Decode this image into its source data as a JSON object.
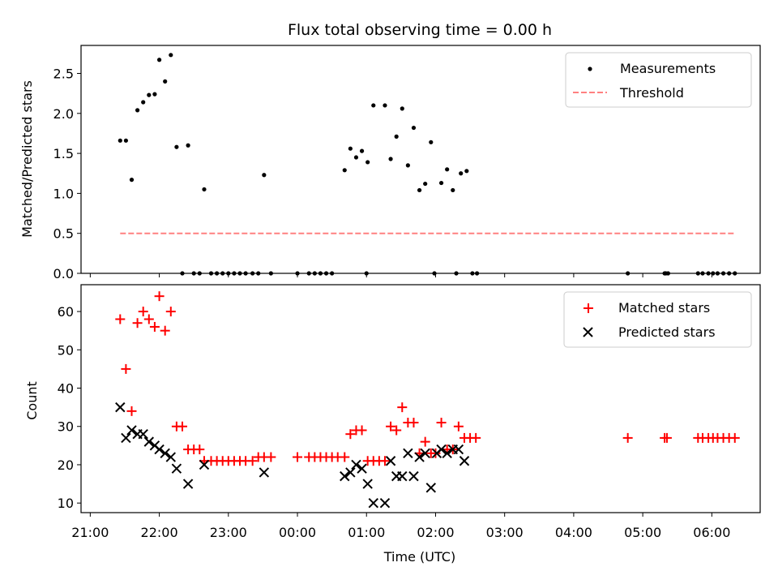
{
  "title": "Flux total observing time = 0.00 h",
  "xlabel": "Time (UTC)",
  "x_ticks": [
    "21:00",
    "22:00",
    "23:00",
    "00:00",
    "01:00",
    "02:00",
    "03:00",
    "04:00",
    "05:00",
    "06:00"
  ],
  "colors": {
    "measurements": "#000000",
    "threshold": "#ff8080",
    "matched": "#ff0000",
    "predicted": "#000000"
  },
  "chart_data": [
    {
      "type": "scatter",
      "ylabel": "Matched/Predicted stars",
      "xlim": [
        "20:52",
        "06:42"
      ],
      "ylim": [
        0,
        2.85
      ],
      "y_ticks": [
        "0.0",
        "0.5",
        "1.0",
        "1.5",
        "2.0",
        "2.5"
      ],
      "legend_position": "top-right",
      "legend": [
        "Measurements",
        "Threshold"
      ],
      "series": [
        {
          "name": "Measurements",
          "marker": "dot",
          "points": [
            [
              "21:26",
              1.66
            ],
            [
              "21:31",
              1.66
            ],
            [
              "21:36",
              1.17
            ],
            [
              "21:41",
              2.04
            ],
            [
              "21:46",
              2.14
            ],
            [
              "21:51",
              2.23
            ],
            [
              "21:56",
              2.24
            ],
            [
              "22:00",
              2.67
            ],
            [
              "22:05",
              2.4
            ],
            [
              "22:10",
              2.73
            ],
            [
              "22:15",
              1.58
            ],
            [
              "22:25",
              1.6
            ],
            [
              "22:39",
              1.05
            ],
            [
              "02:27",
              1.28
            ],
            [
              "02:22",
              1.25
            ],
            [
              "02:15",
              1.04
            ],
            [
              "02:10",
              1.3
            ],
            [
              "02:05",
              1.13
            ],
            [
              "01:56",
              1.64
            ],
            [
              "01:51",
              1.12
            ],
            [
              "01:46",
              1.04
            ],
            [
              "01:41",
              1.82
            ],
            [
              "01:36",
              1.35
            ],
            [
              "01:31",
              2.06
            ],
            [
              "01:26",
              1.71
            ],
            [
              "01:21",
              1.43
            ],
            [
              "01:16",
              2.1
            ],
            [
              "01:06",
              2.1
            ],
            [
              "01:01",
              1.39
            ],
            [
              "00:56",
              1.53
            ],
            [
              "00:51",
              1.45
            ],
            [
              "00:46",
              1.56
            ],
            [
              "00:41",
              1.29
            ],
            [
              "23:31",
              1.23
            ],
            [
              "22:20",
              0
            ],
            [
              "22:30",
              0
            ],
            [
              "22:35",
              0
            ],
            [
              "22:45",
              0
            ],
            [
              "22:50",
              0
            ],
            [
              "22:55",
              0
            ],
            [
              "23:00",
              0
            ],
            [
              "23:05",
              0
            ],
            [
              "23:10",
              0
            ],
            [
              "23:15",
              0
            ],
            [
              "23:21",
              0
            ],
            [
              "23:26",
              0
            ],
            [
              "23:37",
              0
            ],
            [
              "00:00",
              0
            ],
            [
              "00:10",
              0
            ],
            [
              "00:15",
              0
            ],
            [
              "00:20",
              0
            ],
            [
              "00:25",
              0
            ],
            [
              "00:30",
              0
            ],
            [
              "01:00",
              0
            ],
            [
              "01:59",
              0
            ],
            [
              "02:18",
              0
            ],
            [
              "02:32",
              0
            ],
            [
              "02:36",
              0
            ],
            [
              "04:47",
              0
            ],
            [
              "05:19",
              0
            ],
            [
              "05:20",
              0
            ],
            [
              "05:22",
              0
            ],
            [
              "05:48",
              0
            ],
            [
              "05:52",
              0
            ],
            [
              "05:57",
              0
            ],
            [
              "06:01",
              0
            ],
            [
              "06:05",
              0
            ],
            [
              "06:10",
              0
            ],
            [
              "06:15",
              0
            ],
            [
              "06:20",
              0
            ]
          ]
        },
        {
          "name": "Threshold",
          "type": "line",
          "style": "dashed",
          "x": [
            "21:26",
            "06:20"
          ],
          "y": [
            0.5,
            0.5
          ]
        }
      ]
    },
    {
      "type": "scatter",
      "ylabel": "Count",
      "xlim": [
        "20:52",
        "06:42"
      ],
      "ylim": [
        7.5,
        67
      ],
      "y_ticks": [
        "10",
        "20",
        "30",
        "40",
        "50",
        "60"
      ],
      "legend_position": "top-right",
      "legend": [
        "Matched stars",
        "Predicted stars"
      ],
      "series": [
        {
          "name": "Matched stars",
          "marker": "plus",
          "points": [
            [
              "21:26",
              58
            ],
            [
              "21:31",
              45
            ],
            [
              "21:36",
              34
            ],
            [
              "21:41",
              57
            ],
            [
              "21:46",
              60
            ],
            [
              "21:51",
              58
            ],
            [
              "21:56",
              56
            ],
            [
              "22:00",
              64
            ],
            [
              "22:05",
              55
            ],
            [
              "22:10",
              60
            ],
            [
              "22:15",
              30
            ],
            [
              "22:20",
              30
            ],
            [
              "22:25",
              24
            ],
            [
              "22:30",
              24
            ],
            [
              "22:35",
              24
            ],
            [
              "22:39",
              21
            ],
            [
              "22:45",
              21
            ],
            [
              "22:50",
              21
            ],
            [
              "22:55",
              21
            ],
            [
              "23:00",
              21
            ],
            [
              "23:05",
              21
            ],
            [
              "23:10",
              21
            ],
            [
              "23:15",
              21
            ],
            [
              "23:21",
              21
            ],
            [
              "23:26",
              22
            ],
            [
              "23:31",
              22
            ],
            [
              "23:37",
              22
            ],
            [
              "00:00",
              22
            ],
            [
              "00:10",
              22
            ],
            [
              "00:15",
              22
            ],
            [
              "00:20",
              22
            ],
            [
              "00:25",
              22
            ],
            [
              "00:30",
              22
            ],
            [
              "00:35",
              22
            ],
            [
              "00:41",
              22
            ],
            [
              "00:46",
              28
            ],
            [
              "00:51",
              29
            ],
            [
              "00:56",
              29
            ],
            [
              "01:01",
              21
            ],
            [
              "01:06",
              21
            ],
            [
              "01:11",
              21
            ],
            [
              "01:16",
              21
            ],
            [
              "01:21",
              30
            ],
            [
              "01:26",
              29
            ],
            [
              "01:31",
              35
            ],
            [
              "01:36",
              31
            ],
            [
              "01:41",
              31
            ],
            [
              "01:46",
              23
            ],
            [
              "01:51",
              26
            ],
            [
              "01:56",
              23
            ],
            [
              "02:00",
              23
            ],
            [
              "02:05",
              31
            ],
            [
              "02:10",
              24
            ],
            [
              "02:15",
              24
            ],
            [
              "02:20",
              30
            ],
            [
              "02:25",
              27
            ],
            [
              "02:30",
              27
            ],
            [
              "02:35",
              27
            ],
            [
              "04:47",
              27
            ],
            [
              "05:19",
              27
            ],
            [
              "05:21",
              27
            ],
            [
              "05:48",
              27
            ],
            [
              "05:52",
              27
            ],
            [
              "05:57",
              27
            ],
            [
              "06:01",
              27
            ],
            [
              "06:05",
              27
            ],
            [
              "06:10",
              27
            ],
            [
              "06:15",
              27
            ],
            [
              "06:20",
              27
            ]
          ]
        },
        {
          "name": "Predicted stars",
          "marker": "x",
          "points": [
            [
              "21:26",
              35
            ],
            [
              "21:31",
              27
            ],
            [
              "21:36",
              29
            ],
            [
              "21:41",
              28
            ],
            [
              "21:46",
              28
            ],
            [
              "21:51",
              26
            ],
            [
              "21:56",
              25
            ],
            [
              "22:00",
              24
            ],
            [
              "22:05",
              23
            ],
            [
              "22:10",
              22
            ],
            [
              "22:15",
              19
            ],
            [
              "22:25",
              15
            ],
            [
              "22:39",
              20
            ],
            [
              "23:31",
              18
            ],
            [
              "00:41",
              17
            ],
            [
              "00:46",
              18
            ],
            [
              "00:51",
              20
            ],
            [
              "00:56",
              19
            ],
            [
              "01:01",
              15
            ],
            [
              "01:06",
              10
            ],
            [
              "01:16",
              10
            ],
            [
              "01:21",
              21
            ],
            [
              "01:26",
              17
            ],
            [
              "01:31",
              17
            ],
            [
              "01:36",
              23
            ],
            [
              "01:41",
              17
            ],
            [
              "01:46",
              22
            ],
            [
              "01:51",
              23
            ],
            [
              "01:56",
              14
            ],
            [
              "02:01",
              23
            ],
            [
              "02:05",
              24
            ],
            [
              "02:10",
              23
            ],
            [
              "02:15",
              24
            ],
            [
              "02:20",
              24
            ],
            [
              "02:25",
              21
            ]
          ]
        }
      ]
    }
  ]
}
